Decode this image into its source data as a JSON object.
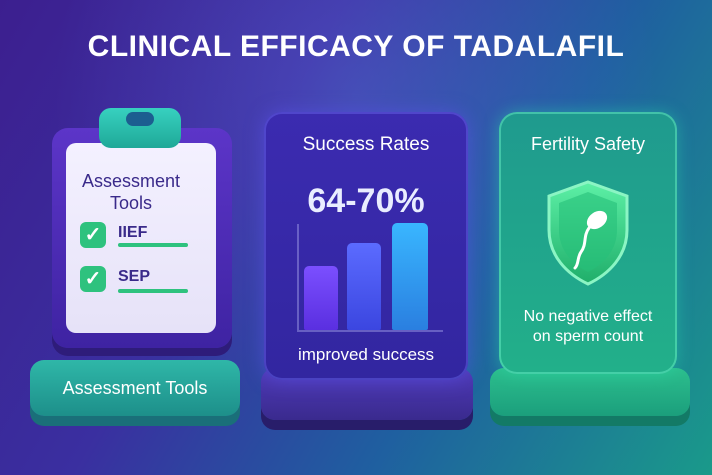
{
  "title": "CLINICAL EFFICACY OF TADALAFIL",
  "assessment_card": {
    "heading": "Assessment Tools",
    "items": [
      {
        "label": "IIEF",
        "checked": true
      },
      {
        "label": "SEP",
        "checked": true
      }
    ],
    "base_label": "Assessment Tools",
    "icons": [
      "clipboard-icon",
      "checkmark-icon"
    ]
  },
  "success_card": {
    "title": "Success Rates",
    "value": "64-70%",
    "caption": "improved success",
    "icons": [
      "bar-chart-icon"
    ]
  },
  "fertility_card": {
    "title": "Fertility Safety",
    "caption_line1": "No negative effect",
    "caption_line2": "on sperm count",
    "icons": [
      "shield-icon",
      "sperm-icon"
    ]
  },
  "colors": {
    "teal": "#2fb7a8",
    "purple": "#3b2bb0",
    "green": "#2ec27e"
  }
}
